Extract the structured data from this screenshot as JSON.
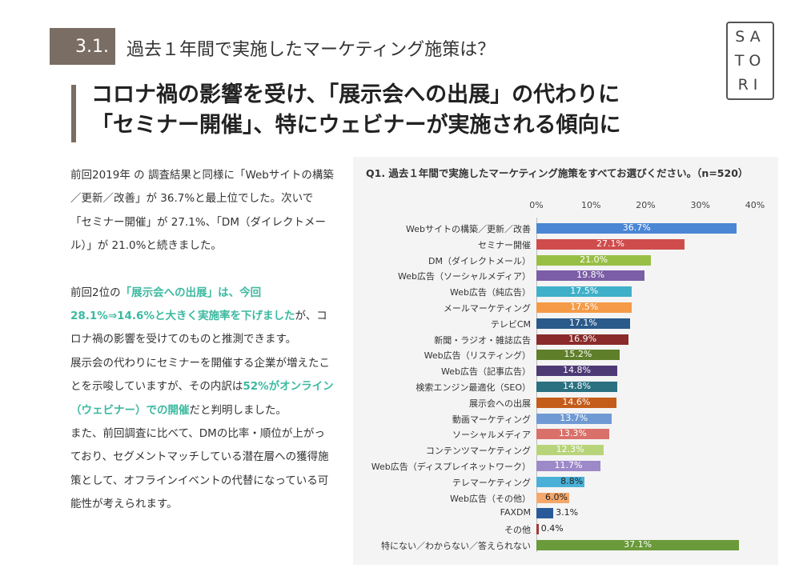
{
  "header": {
    "section_number": "3.1.",
    "section_title": "過去１年間で実施したマーケティング施策は？",
    "headline_line1": "コロナ禍の影響を受け、「展示会への出展」の代わりに",
    "headline_line2": "「セミナー開催」、特にウェビナーが実施される傾向に"
  },
  "logo": {
    "line1": "SA",
    "line2": "TO",
    "line3": "RI"
  },
  "body": {
    "p1": "前回2019年 の 調査結果と同様に「Webサイトの構築／更新／改善」が 36.7%と最上位でした。次いで「セミナー開催」が 27.1%、「DM（ダイレクトメール）」が 21.0%と続きました。",
    "p2_prefix": "前回2位の",
    "p2_highlight": "「展示会への出展」は、今回 28.1%⇒14.6%と大きく実施率を下げました",
    "p2_suffix": "が、コロナ禍の影響を受けてのものと推測できます。",
    "p3_prefix": "展示会の代わりにセミナーを開催する企業が増えたことを示唆していますが、その内訳は",
    "p3_highlight": "52%がオンライン（ウェビナー）での開催",
    "p3_suffix": "だと判明しました。",
    "p4": "また、前回調査に比べて、DMの比率・順位が上がっており、セグメントマッチしている潜在層への獲得施策として、オフラインイベントの代替になっている可能性が考えられます。"
  },
  "chart_data": {
    "type": "bar",
    "orientation": "horizontal",
    "title": "Q1. 過去１年間で実施したマーケティング施策をすべてお選びください。（n=520）",
    "xlim": [
      0,
      40
    ],
    "ticks": [
      "0%",
      "10%",
      "20%",
      "30%",
      "40%"
    ],
    "tick_values": [
      0,
      10,
      20,
      30,
      40
    ],
    "categories": [
      "Webサイトの構築／更新／改善",
      "セミナー開催",
      "DM（ダイレクトメール）",
      "Web広告（ソーシャルメディア）",
      "Web広告（純広告）",
      "メールマーケティング",
      "テレビCM",
      "新聞・ラジオ・雑誌広告",
      "Web広告（リスティング）",
      "Web広告（記事広告）",
      "検索エンジン最適化（SEO）",
      "展示会への出展",
      "動画マーケティング",
      "ソーシャルメディア",
      "コンテンツマーケティング",
      "Web広告（ディスプレイネットワーク）",
      "テレマーケティング",
      "Web広告（その他）",
      "FAXDM",
      "その他",
      "特にない／わからない／答えられない"
    ],
    "values": [
      36.7,
      27.1,
      21.0,
      19.8,
      17.5,
      17.5,
      17.1,
      16.9,
      15.2,
      14.8,
      14.8,
      14.6,
      13.7,
      13.3,
      12.3,
      11.7,
      8.8,
      6.0,
      3.1,
      0.4,
      37.1
    ],
    "labels": [
      "36.7%",
      "27.1%",
      "21.0%",
      "19.8%",
      "17.5%",
      "17.5%",
      "17.1%",
      "16.9%",
      "15.2%",
      "14.8%",
      "14.8%",
      "14.6%",
      "13.7%",
      "13.3%",
      "12.3%",
      "11.7%",
      "8.8%",
      "6.0%",
      "3.1%",
      "0.4%",
      "37.1%"
    ],
    "colors": [
      "#4a86d4",
      "#cf4c4c",
      "#98bf45",
      "#7b5ea6",
      "#3fb0c8",
      "#f59a46",
      "#2a5a8a",
      "#8a2a2a",
      "#5f7f2a",
      "#4d3a75",
      "#2a7080",
      "#c45c1a",
      "#6f9ad4",
      "#d9706a",
      "#b8d47a",
      "#9d88c8",
      "#4ab0d8",
      "#f5a86a",
      "#2a5a9a",
      "#a03a3a",
      "#6a9a3a"
    ]
  }
}
